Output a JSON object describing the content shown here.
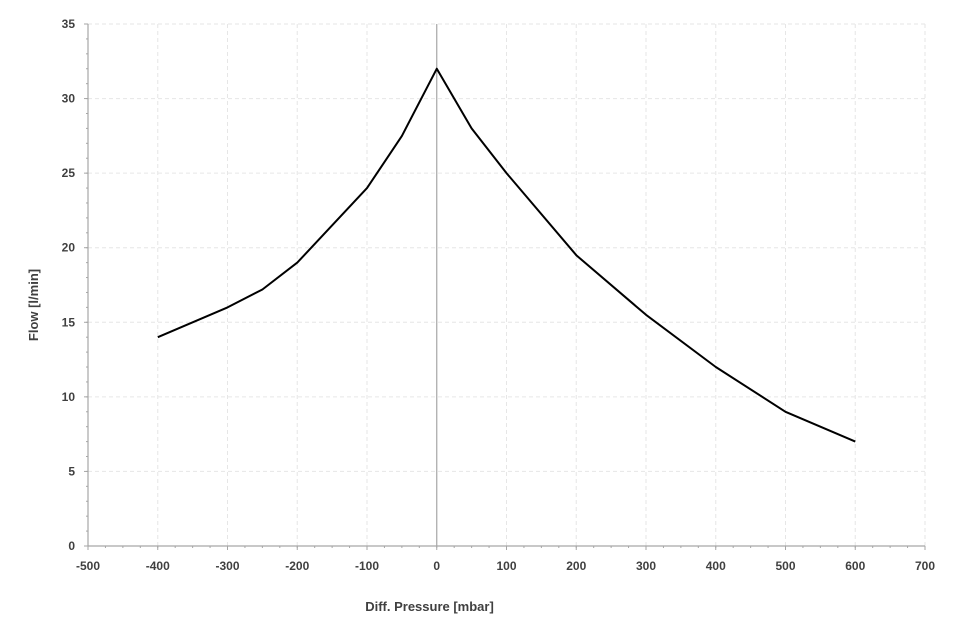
{
  "chart_data": {
    "type": "line",
    "title": "",
    "xlabel": "Diff. Pressure [mbar]",
    "ylabel": "Flow [l/min]",
    "xlim": [
      -500,
      700
    ],
    "ylim": [
      0,
      35
    ],
    "x_ticks": [
      -500,
      -400,
      -300,
      -200,
      -100,
      0,
      100,
      200,
      300,
      400,
      500,
      600,
      700
    ],
    "y_ticks": [
      0,
      5,
      10,
      15,
      20,
      25,
      30,
      35
    ],
    "grid": true,
    "legend": "none",
    "colors": {
      "line": "#000000",
      "axis": "#a6a6a6",
      "grid": "#e6e6e6",
      "text": "#404040"
    },
    "series": [
      {
        "x": [
          -400,
          -300,
          -250,
          -200,
          -100,
          -50,
          0,
          50,
          100,
          200,
          300,
          400,
          500,
          550,
          600
        ],
        "y": [
          14,
          16,
          17.2,
          19,
          24,
          27.5,
          32,
          28,
          25,
          19.5,
          15.5,
          12,
          9,
          8,
          7
        ]
      }
    ]
  }
}
